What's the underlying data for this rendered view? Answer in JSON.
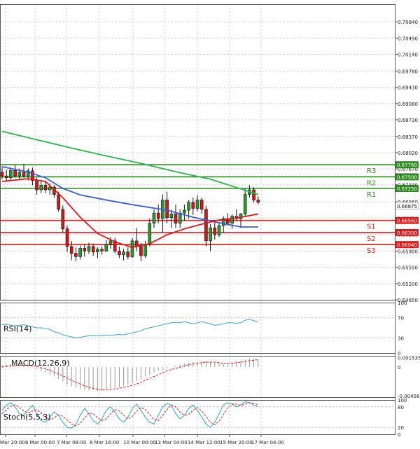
{
  "chart_data": {
    "type": "candlestick",
    "price_axis": {
      "min": 0.6485,
      "max": 0.7122,
      "ticks": [
        "0.70840",
        "0.70490",
        "0.70140",
        "0.69780",
        "0.69430",
        "0.69080",
        "0.68730",
        "0.68370",
        "0.68020",
        "0.67670",
        "0.67330",
        "0.66960",
        "0.66610",
        "0.66260",
        "0.65900",
        "0.65550",
        "0.65200",
        "0.64850"
      ]
    },
    "time_axis": {
      "labels": [
        "Mar 20:00",
        "6 Mar 00:00",
        "7 Mar 08:00",
        "8 Mar 16:00",
        "10 Mar 00:00",
        "13 Mar 04:00",
        "14 Mar 12:00",
        "15 Mar 20:00",
        "17 Mar 04:00"
      ]
    },
    "candles": [
      [
        0.676,
        0.6772,
        0.6745,
        0.6752
      ],
      [
        0.6752,
        0.6765,
        0.674,
        0.6748
      ],
      [
        0.6748,
        0.677,
        0.6742,
        0.6764
      ],
      [
        0.6764,
        0.6775,
        0.6748,
        0.6752
      ],
      [
        0.6752,
        0.6768,
        0.6745,
        0.676
      ],
      [
        0.676,
        0.6778,
        0.6748,
        0.6752
      ],
      [
        0.6752,
        0.6768,
        0.6742,
        0.6763
      ],
      [
        0.6763,
        0.677,
        0.6732,
        0.6742
      ],
      [
        0.6742,
        0.6748,
        0.6712,
        0.6722
      ],
      [
        0.6722,
        0.674,
        0.6715,
        0.6732
      ],
      [
        0.6732,
        0.6742,
        0.6715,
        0.6722
      ],
      [
        0.6722,
        0.6736,
        0.6712,
        0.6728
      ],
      [
        0.6728,
        0.6732,
        0.6705,
        0.6712
      ],
      [
        0.6712,
        0.6718,
        0.6675,
        0.668
      ],
      [
        0.668,
        0.6688,
        0.663,
        0.6638
      ],
      [
        0.6638,
        0.6645,
        0.6588,
        0.66
      ],
      [
        0.66,
        0.6612,
        0.657,
        0.6585
      ],
      [
        0.6585,
        0.6598,
        0.6568,
        0.6578
      ],
      [
        0.6578,
        0.6602,
        0.6572,
        0.6596
      ],
      [
        0.6596,
        0.6604,
        0.6578,
        0.659
      ],
      [
        0.659,
        0.6608,
        0.6584,
        0.66
      ],
      [
        0.66,
        0.6606,
        0.658,
        0.6588
      ],
      [
        0.6588,
        0.6598,
        0.6575,
        0.6594
      ],
      [
        0.6594,
        0.66,
        0.6582,
        0.659
      ],
      [
        0.659,
        0.6614,
        0.6588,
        0.6605
      ],
      [
        0.6605,
        0.662,
        0.6595,
        0.6612
      ],
      [
        0.6612,
        0.6618,
        0.6585,
        0.659
      ],
      [
        0.659,
        0.66,
        0.6575,
        0.6582
      ],
      [
        0.6582,
        0.6595,
        0.657,
        0.6588
      ],
      [
        0.6588,
        0.6598,
        0.6572,
        0.6578
      ],
      [
        0.6578,
        0.6618,
        0.6575,
        0.6612
      ],
      [
        0.6612,
        0.664,
        0.659,
        0.66
      ],
      [
        0.66,
        0.6608,
        0.6568,
        0.658
      ],
      [
        0.658,
        0.6612,
        0.6575,
        0.6605
      ],
      [
        0.6605,
        0.666,
        0.66,
        0.665
      ],
      [
        0.665,
        0.668,
        0.664,
        0.6672
      ],
      [
        0.6672,
        0.669,
        0.665,
        0.666
      ],
      [
        0.666,
        0.6712,
        0.663,
        0.67
      ],
      [
        0.67,
        0.6718,
        0.665,
        0.6662
      ],
      [
        0.6662,
        0.668,
        0.664,
        0.667
      ],
      [
        0.667,
        0.669,
        0.664,
        0.665
      ],
      [
        0.665,
        0.668,
        0.664,
        0.6672
      ],
      [
        0.6672,
        0.669,
        0.6655,
        0.6678
      ],
      [
        0.6678,
        0.67,
        0.666,
        0.6695
      ],
      [
        0.6695,
        0.6705,
        0.6668,
        0.6682
      ],
      [
        0.6682,
        0.671,
        0.6676,
        0.67
      ],
      [
        0.67,
        0.6705,
        0.667,
        0.668
      ],
      [
        0.668,
        0.6688,
        0.66,
        0.6612
      ],
      [
        0.6612,
        0.6648,
        0.659,
        0.664
      ],
      [
        0.664,
        0.6655,
        0.6615,
        0.6625
      ],
      [
        0.6625,
        0.665,
        0.662,
        0.6645
      ],
      [
        0.6645,
        0.6665,
        0.663,
        0.666
      ],
      [
        0.666,
        0.6672,
        0.6645,
        0.665
      ],
      [
        0.665,
        0.667,
        0.6638,
        0.6665
      ],
      [
        0.6665,
        0.668,
        0.6655,
        0.666
      ],
      [
        0.666,
        0.6672,
        0.664,
        0.667
      ],
      [
        0.667,
        0.6725,
        0.6665,
        0.6712
      ],
      [
        0.6712,
        0.6732,
        0.6705,
        0.6722
      ],
      [
        0.6722,
        0.6728,
        0.6695,
        0.67
      ],
      [
        0.67,
        0.6708,
        0.669,
        0.6695
      ]
    ],
    "moving_averages": [
      {
        "color": "#2db44a",
        "points": [
          [
            0,
            0.6848
          ],
          [
            8,
            0.683
          ],
          [
            16,
            0.6812
          ],
          [
            24,
            0.6795
          ],
          [
            32,
            0.6779
          ],
          [
            40,
            0.6761
          ],
          [
            48,
            0.6745
          ],
          [
            54,
            0.6727
          ],
          [
            59,
            0.6712
          ]
        ]
      },
      {
        "color": "#3a5fd8",
        "points": [
          [
            0,
            0.6772
          ],
          [
            6,
            0.676
          ],
          [
            10,
            0.6748
          ],
          [
            14,
            0.6725
          ],
          [
            18,
            0.6711
          ],
          [
            24,
            0.67
          ],
          [
            30,
            0.669
          ],
          [
            38,
            0.6678
          ],
          [
            44,
            0.6663
          ],
          [
            50,
            0.6651
          ],
          [
            55,
            0.6642
          ],
          [
            59,
            0.6642
          ]
        ]
      },
      {
        "color": "#e0191b",
        "points": [
          [
            0,
            0.674
          ],
          [
            6,
            0.6746
          ],
          [
            10,
            0.674
          ],
          [
            14,
            0.6705
          ],
          [
            18,
            0.6663
          ],
          [
            22,
            0.6628
          ],
          [
            26,
            0.661
          ],
          [
            30,
            0.6598
          ],
          [
            34,
            0.6606
          ],
          [
            38,
            0.6625
          ],
          [
            42,
            0.6638
          ],
          [
            46,
            0.6648
          ],
          [
            50,
            0.6657
          ],
          [
            54,
            0.6661
          ],
          [
            59,
            0.667
          ]
        ]
      }
    ],
    "levels": [
      {
        "name": "R3",
        "value": 0.6776,
        "label": "0.67760",
        "color": "#2e8a20"
      },
      {
        "name": "R2",
        "value": 0.675,
        "label": "0.67500",
        "color": "#2e8a20"
      },
      {
        "name": "R1",
        "value": 0.6725,
        "label": "0.67250",
        "color": "#2e8a20"
      },
      {
        "name": "S1",
        "value": 0.6656,
        "label": "0.66560",
        "color": "#e0191b"
      },
      {
        "name": "S2",
        "value": 0.663,
        "label": "0.66300",
        "color": "#e0191b"
      },
      {
        "name": "S3",
        "value": 0.6604,
        "label": "0.66040",
        "color": "#e0191b"
      }
    ],
    "current_price": {
      "value": 0.66875,
      "label": "0.66875"
    },
    "rsi": {
      "label": "RSI(14)",
      "ticks": [
        "100",
        "70",
        "30",
        "0"
      ],
      "values": [
        56,
        57,
        55,
        54,
        55,
        56,
        54,
        52,
        50,
        50,
        48,
        47,
        42,
        40,
        36,
        34,
        32,
        30,
        31,
        33,
        34,
        35,
        34,
        35,
        36,
        35,
        36,
        37,
        36,
        38,
        40,
        42,
        44,
        48,
        50,
        52,
        54,
        56,
        58,
        60,
        61,
        60,
        62,
        60,
        58,
        60,
        62,
        60,
        58,
        55,
        56,
        58,
        60,
        60,
        59,
        60,
        65,
        67,
        64,
        62
      ]
    },
    "macd": {
      "label": "MACD(12,26,9)",
      "ticks": [
        "0.001535",
        "0",
        "-0.004565"
      ],
      "histogram": [
        0.0003,
        0.0004,
        0.0005,
        0.0004,
        0.0003,
        0.0003,
        0.0002,
        0.0001,
        -0.0003,
        -0.0006,
        -0.0009,
        -0.0012,
        -0.0015,
        -0.0019,
        -0.0023,
        -0.0028,
        -0.0031,
        -0.0033,
        -0.0035,
        -0.0036,
        -0.0037,
        -0.0037,
        -0.0038,
        -0.0038,
        -0.0036,
        -0.0035,
        -0.0033,
        -0.0032,
        -0.003,
        -0.0028,
        -0.0025,
        -0.0022,
        -0.0019,
        -0.0015,
        -0.0012,
        -0.0009,
        -0.0006,
        -0.0004,
        -0.0002,
        0.0,
        0.0002,
        0.0004,
        0.0006,
        0.0007,
        0.0008,
        0.0009,
        0.001,
        0.001,
        0.0008,
        0.0007,
        0.0006,
        0.0006,
        0.0007,
        0.0008,
        0.0009,
        0.001,
        0.0012,
        0.0014,
        0.0014,
        0.0013
      ],
      "signal": [
        0.0,
        0.0001,
        0.0002,
        0.0003,
        0.0003,
        0.0003,
        0.0003,
        0.0002,
        0.0001,
        -0.0001,
        -0.0003,
        -0.0005,
        -0.0008,
        -0.0011,
        -0.0014,
        -0.0017,
        -0.0021,
        -0.0024,
        -0.0027,
        -0.003,
        -0.0032,
        -0.0034,
        -0.0035,
        -0.0036,
        -0.0036,
        -0.0036,
        -0.0035,
        -0.0034,
        -0.0032,
        -0.0031,
        -0.0029,
        -0.0027,
        -0.0024,
        -0.0021,
        -0.0018,
        -0.0015,
        -0.0012,
        -0.0009,
        -0.0006,
        -0.0004,
        -0.0002,
        0.0,
        0.0002,
        0.0004,
        0.0005,
        0.0006,
        0.0007,
        0.0008,
        0.0008,
        0.0008,
        0.0007,
        0.0006,
        0.0006,
        0.0006,
        0.0007,
        0.0008,
        0.0009,
        0.001,
        0.0011,
        0.0012
      ]
    },
    "stoch": {
      "label": "Stoch(5,5,3)",
      "ticks": [
        "100",
        "80",
        "20",
        "0"
      ],
      "main": [
        70,
        85,
        92,
        80,
        60,
        55,
        70,
        85,
        60,
        40,
        35,
        50,
        65,
        55,
        35,
        20,
        18,
        30,
        55,
        75,
        60,
        40,
        30,
        45,
        70,
        80,
        65,
        45,
        35,
        50,
        75,
        88,
        70,
        50,
        35,
        30,
        55,
        80,
        90,
        85,
        60,
        45,
        55,
        75,
        85,
        70,
        50,
        30,
        20,
        35,
        60,
        85,
        92,
        88,
        80,
        86,
        95,
        92,
        85,
        80
      ],
      "signal": [
        60,
        72,
        82,
        86,
        78,
        68,
        62,
        68,
        72,
        62,
        48,
        42,
        48,
        57,
        52,
        42,
        30,
        24,
        32,
        48,
        62,
        60,
        48,
        40,
        45,
        60,
        72,
        68,
        55,
        45,
        52,
        68,
        78,
        72,
        58,
        42,
        40,
        55,
        72,
        85,
        80,
        65,
        55,
        58,
        70,
        78,
        68,
        52,
        35,
        28,
        38,
        58,
        78,
        88,
        88,
        84,
        88,
        92,
        90,
        86
      ]
    }
  }
}
